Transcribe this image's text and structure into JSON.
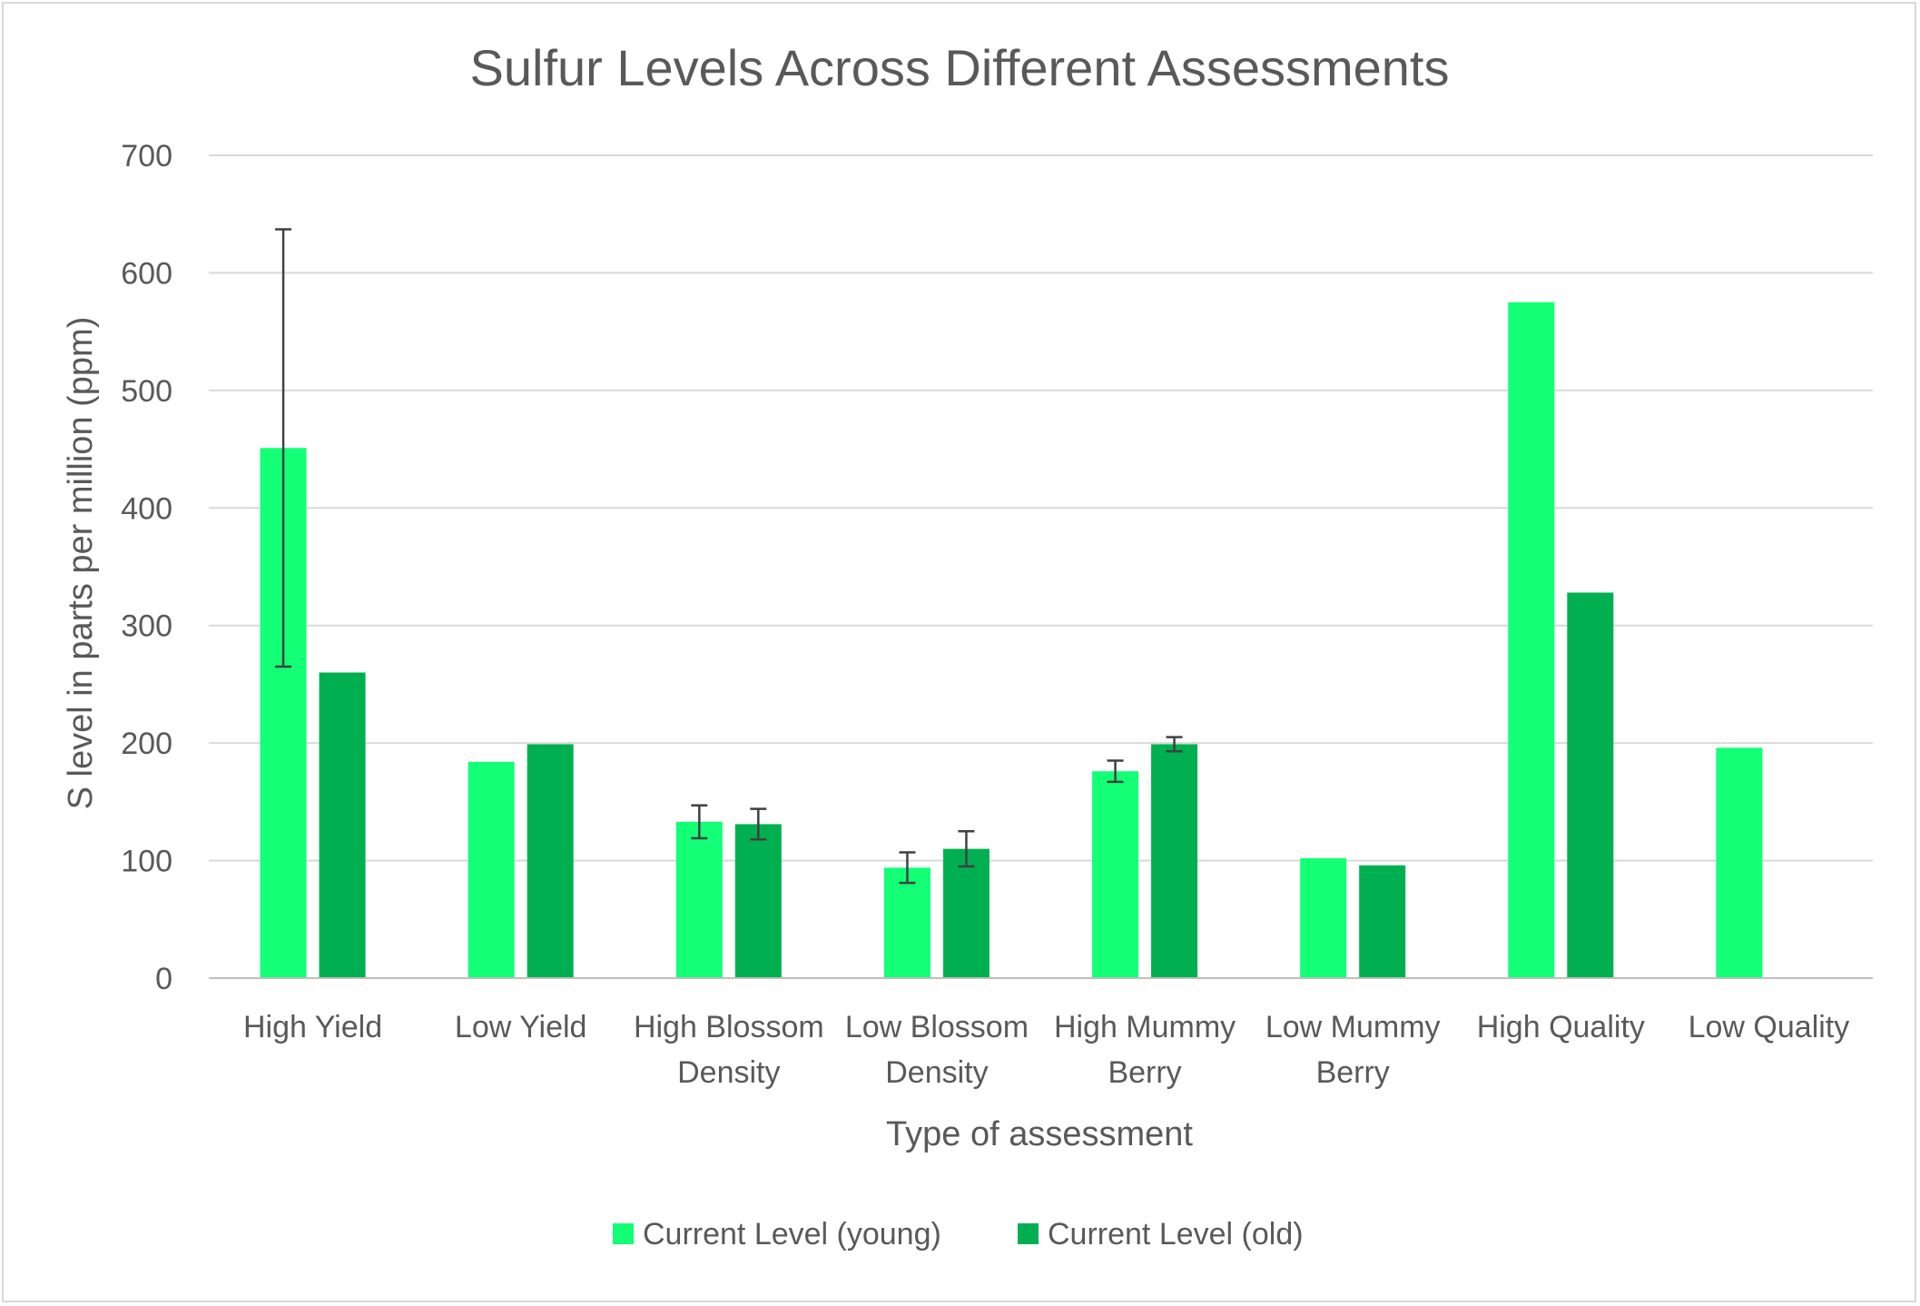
{
  "chart_data": {
    "type": "bar",
    "title": "Sulfur Levels Across Different Assessments",
    "xlabel": "Type of assessment",
    "ylabel": "S level in parts per million (ppm)",
    "ylim": [
      0,
      700
    ],
    "yticks": [
      0,
      100,
      200,
      300,
      400,
      500,
      600,
      700
    ],
    "grid": true,
    "legend_position": "bottom",
    "categories": [
      [
        "High Yield"
      ],
      [
        "Low Yield"
      ],
      [
        "High Blossom",
        "Density"
      ],
      [
        "Low Blossom",
        "Density"
      ],
      [
        "High Mummy",
        "Berry"
      ],
      [
        "Low Mummy",
        "Berry"
      ],
      [
        "High Quality"
      ],
      [
        "Low Quality"
      ]
    ],
    "series": [
      {
        "name": "Current Level (young)",
        "color": "#12ff76",
        "values": [
          451,
          184,
          133,
          94,
          176,
          102,
          575,
          196
        ],
        "error": [
          186,
          null,
          14,
          13,
          9,
          null,
          null,
          null
        ]
      },
      {
        "name": "Current Level (old)",
        "color": "#00b050",
        "values": [
          260,
          199,
          131,
          110,
          199,
          96,
          328,
          null
        ],
        "error": [
          null,
          null,
          13,
          15,
          6,
          null,
          null,
          null
        ]
      }
    ]
  }
}
